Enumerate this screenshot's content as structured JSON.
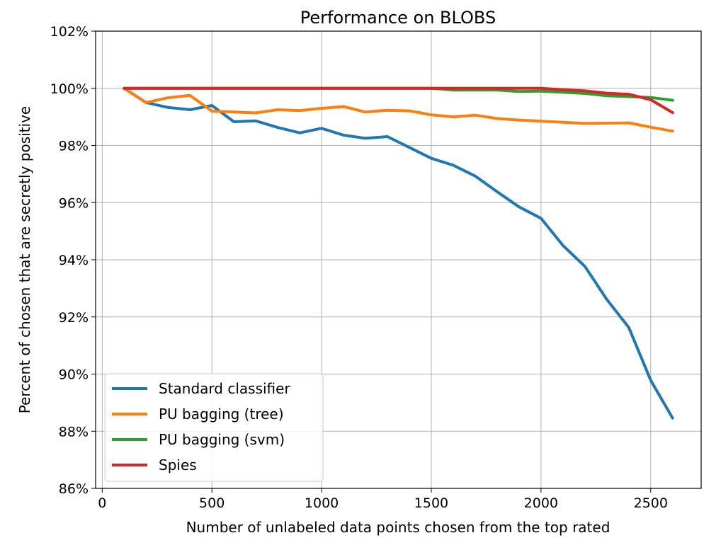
{
  "chart_data": {
    "type": "line",
    "title": "Performance on BLOBS",
    "xlabel": "Number of unlabeled data points chosen from the top rated",
    "ylabel": "Percent of chosen that are secretly positive",
    "xlim": [
      -30,
      2730
    ],
    "ylim": [
      86,
      102
    ],
    "x_ticks": [
      0,
      500,
      1000,
      1500,
      2000,
      2500
    ],
    "x_tick_labels": [
      "0",
      "500",
      "1000",
      "1500",
      "2000",
      "2500"
    ],
    "y_ticks": [
      86,
      88,
      90,
      92,
      94,
      96,
      98,
      100,
      102
    ],
    "y_tick_labels": [
      "86%",
      "88%",
      "90%",
      "92%",
      "94%",
      "96%",
      "98%",
      "100%",
      "102%"
    ],
    "grid": true,
    "legend_position": "lower-left",
    "x": [
      100,
      200,
      300,
      400,
      500,
      600,
      700,
      800,
      900,
      1000,
      1100,
      1200,
      1300,
      1400,
      1500,
      1600,
      1700,
      1800,
      1900,
      2000,
      2100,
      2200,
      2300,
      2400,
      2500,
      2600
    ],
    "series": [
      {
        "name": "Standard classifier",
        "color": "#1f77b4",
        "values": [
          100.0,
          99.5,
          99.33,
          99.25,
          99.4,
          98.83,
          98.86,
          98.63,
          98.44,
          98.6,
          98.36,
          98.25,
          98.31,
          97.93,
          97.55,
          97.31,
          96.93,
          96.38,
          95.85,
          95.45,
          94.5,
          93.77,
          92.61,
          91.63,
          89.78,
          88.46
        ]
      },
      {
        "name": "PU bagging (tree)",
        "color": "#ff7f0e",
        "values": [
          100.0,
          99.5,
          99.67,
          99.75,
          99.2,
          99.17,
          99.14,
          99.25,
          99.22,
          99.3,
          99.36,
          99.17,
          99.23,
          99.21,
          99.07,
          99.0,
          99.06,
          98.94,
          98.89,
          98.85,
          98.81,
          98.77,
          98.78,
          98.79,
          98.64,
          98.5
        ]
      },
      {
        "name": "PU bagging (svm)",
        "color": "#2ca02c",
        "values": [
          100.0,
          100.0,
          100.0,
          100.0,
          100.0,
          100.0,
          100.0,
          100.0,
          100.0,
          100.0,
          100.0,
          100.0,
          100.0,
          100.0,
          100.0,
          99.94,
          99.94,
          99.94,
          99.89,
          99.9,
          99.86,
          99.82,
          99.74,
          99.71,
          99.68,
          99.58
        ]
      },
      {
        "name": "Spies",
        "color": "#d62728",
        "values": [
          100.0,
          100.0,
          100.0,
          100.0,
          100.0,
          100.0,
          100.0,
          100.0,
          100.0,
          100.0,
          100.0,
          100.0,
          100.0,
          100.0,
          100.0,
          100.0,
          100.0,
          100.0,
          100.0,
          100.0,
          99.95,
          99.91,
          99.83,
          99.79,
          99.6,
          99.15
        ]
      }
    ]
  }
}
